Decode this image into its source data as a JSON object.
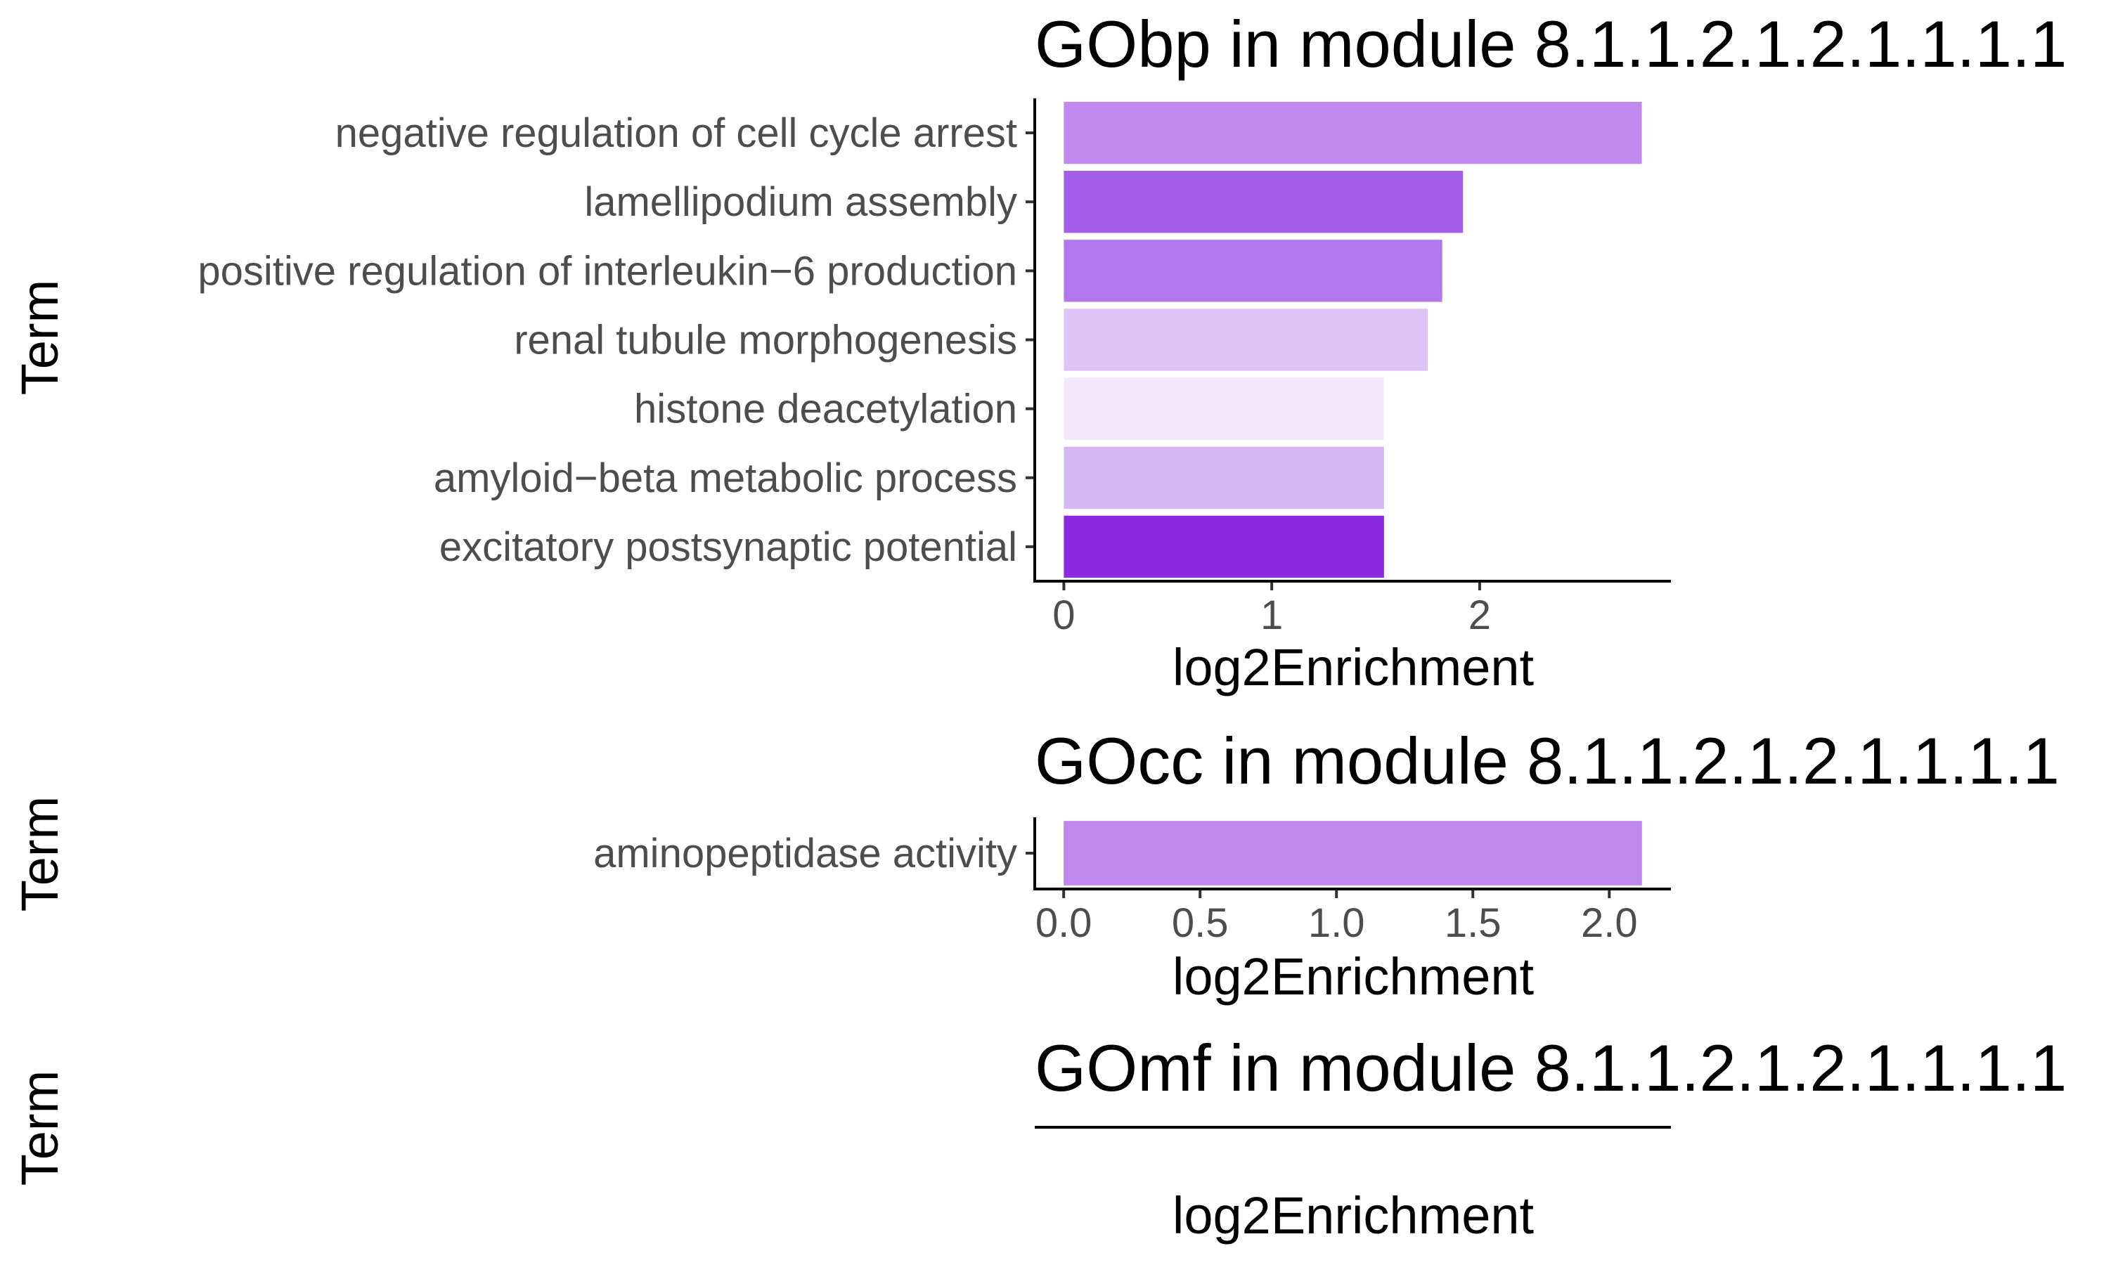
{
  "chart_data": [
    {
      "type": "bar",
      "orientation": "horizontal",
      "title": "GObp in module 8.1.1.2.1.2.1.1.1.1",
      "xlabel": "log2Enrichment",
      "ylabel": "Term",
      "categories": [
        "negative regulation of cell cycle arrest",
        "lamellipodium assembly",
        "positive regulation of interleukin−6 production",
        "renal tubule morphogenesis",
        "histone deacetylation",
        "amyloid−beta metabolic process",
        "excitatory postsynaptic potential"
      ],
      "values": [
        2.78,
        1.92,
        1.82,
        1.75,
        1.54,
        1.54,
        1.54
      ],
      "bar_colors": [
        "#bf89ee",
        "#a35de8",
        "#b377ed",
        "#ddc2f6",
        "#f2e8fc",
        "#d6b7f3",
        "#8a2be2"
      ],
      "xticks": [
        "0",
        "1",
        "2"
      ],
      "xtick_values": [
        0,
        1,
        2
      ],
      "xlim": [
        -0.14,
        2.92
      ],
      "grid": false
    },
    {
      "type": "bar",
      "orientation": "horizontal",
      "title": "GOcc in module 8.1.1.2.1.2.1.1.1.1",
      "xlabel": "log2Enrichment",
      "ylabel": "Term",
      "categories": [
        "aminopeptidase activity"
      ],
      "values": [
        2.12
      ],
      "bar_colors": [
        "#bf89ee"
      ],
      "xticks": [
        "0.0",
        "0.5",
        "1.0",
        "1.5",
        "2.0"
      ],
      "xtick_values": [
        0,
        0.5,
        1.0,
        1.5,
        2.0
      ],
      "xlim": [
        -0.106,
        2.226
      ],
      "grid": false
    },
    {
      "type": "bar",
      "orientation": "horizontal",
      "title": "GOmf in module 8.1.1.2.1.2.1.1.1.1",
      "xlabel": "log2Enrichment",
      "ylabel": "Term",
      "categories": [],
      "values": [],
      "grid": false
    }
  ]
}
